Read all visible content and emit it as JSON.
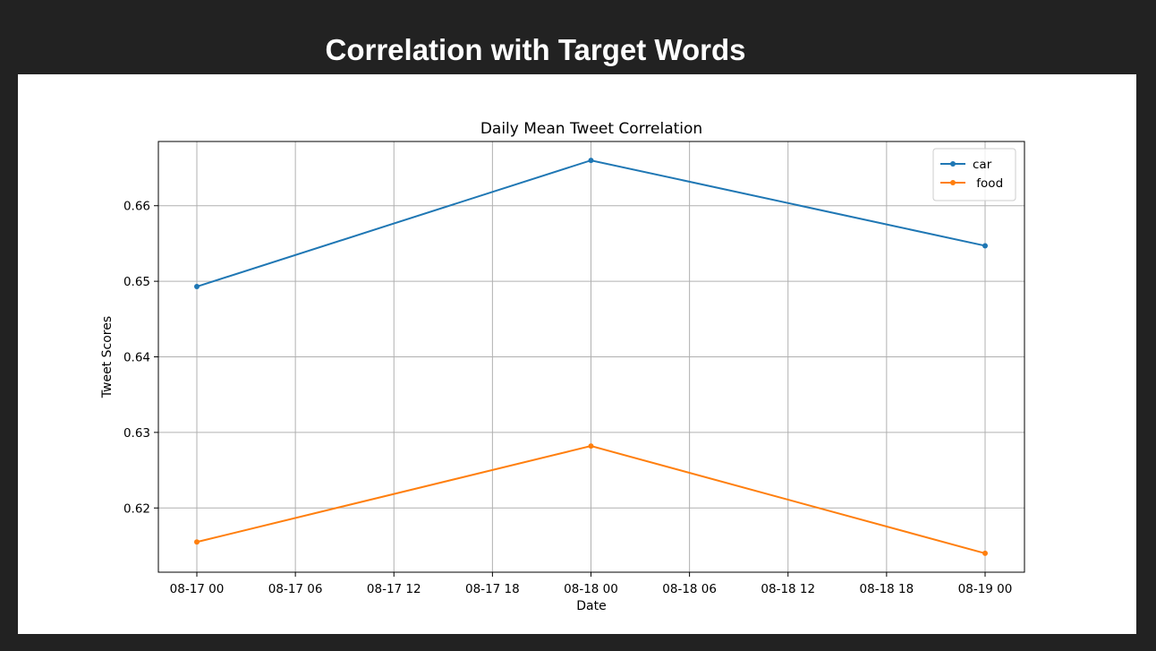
{
  "page": {
    "title": "Correlation with Target Words"
  },
  "chart_data": {
    "type": "line",
    "title": "Daily Mean Tweet Correlation",
    "xlabel": "Date",
    "ylabel": "Tweet Scores",
    "x": [
      "08-17 00",
      "08-18 00",
      "08-19 00"
    ],
    "x_ticks": [
      "08-17 00",
      "08-17 06",
      "08-17 12",
      "08-17 18",
      "08-18 00",
      "08-18 06",
      "08-18 12",
      "08-18 18",
      "08-19 00"
    ],
    "y_ticks": [
      0.62,
      0.63,
      0.64,
      0.65,
      0.66
    ],
    "ylim": [
      0.6115,
      0.6685
    ],
    "grid": true,
    "legend_position": "top-right",
    "series": [
      {
        "name": "car",
        "values": [
          0.6493,
          0.666,
          0.6547
        ],
        "color": "#1f77b4",
        "marker": "circle"
      },
      {
        "name": " food",
        "values": [
          0.6155,
          0.6282,
          0.614
        ],
        "color": "#ff7f0e",
        "marker": "circle"
      }
    ]
  }
}
